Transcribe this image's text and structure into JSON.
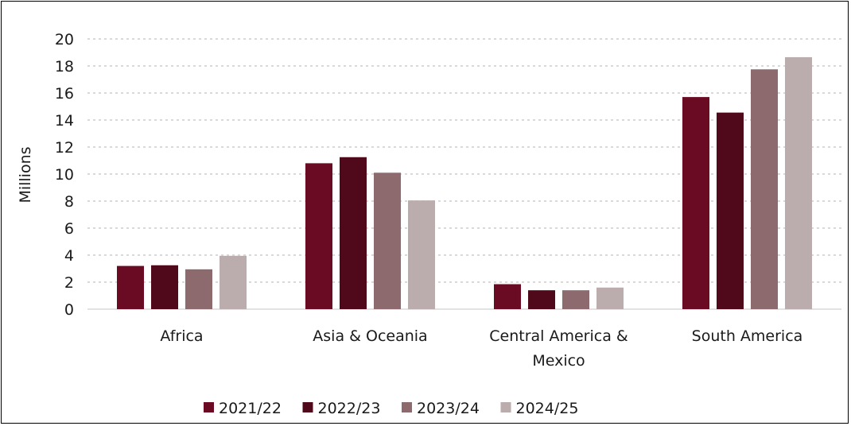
{
  "chart_data": {
    "type": "bar",
    "title": "",
    "xlabel": "",
    "ylabel": "Millions",
    "ylim": [
      0,
      20
    ],
    "yticks": [
      0,
      2,
      4,
      6,
      8,
      10,
      12,
      14,
      16,
      18,
      20
    ],
    "grid": true,
    "legend_position": "bottom",
    "categories": [
      [
        "Africa"
      ],
      [
        "Asia & Oceania"
      ],
      [
        "Central America &",
        "Mexico"
      ],
      [
        "South America"
      ]
    ],
    "series": [
      {
        "name": "2021/22",
        "color": "#6a0b23",
        "values": [
          3.2,
          10.8,
          1.85,
          15.7
        ]
      },
      {
        "name": "2022/23",
        "color": "#50091b",
        "values": [
          3.25,
          11.25,
          1.4,
          14.55
        ]
      },
      {
        "name": "2023/24",
        "color": "#8c6a6e",
        "values": [
          2.95,
          10.1,
          1.4,
          17.75
        ]
      },
      {
        "name": "2024/25",
        "color": "#bbadad",
        "values": [
          3.95,
          8.05,
          1.6,
          18.65
        ]
      }
    ]
  }
}
